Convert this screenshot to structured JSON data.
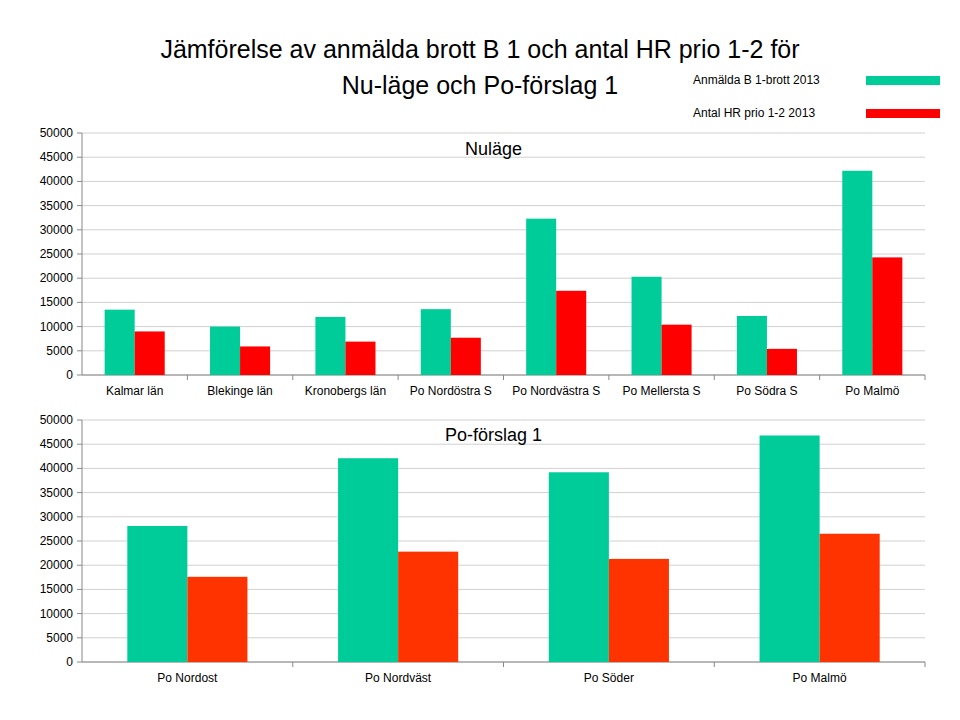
{
  "header": {
    "title": [
      "Jämförelse av anmälda brott B 1 och antal HR prio 1-2 för",
      "Nu-läge och Po-förslag 1"
    ]
  },
  "chart_data": [
    {
      "type": "bar",
      "title": "Nuläge",
      "categories": [
        "Kalmar län",
        "Blekinge län",
        "Kronobergs län",
        "Po Nordöstra S",
        "Po Nordvästra S",
        "Po Mellersta S",
        "Po Södra S",
        "Po Malmö"
      ],
      "series": [
        {
          "name": "Anmälda B 1-brott 2013",
          "color": "#00cc99",
          "values": [
            13500,
            10000,
            12000,
            13600,
            32300,
            20300,
            12200,
            42200
          ]
        },
        {
          "name": "Antal HR prio 1-2 2013",
          "color": "#ff0000",
          "values": [
            9000,
            5900,
            6900,
            7700,
            17400,
            10400,
            5400,
            24300
          ]
        }
      ],
      "ylim": [
        0,
        50000
      ],
      "yticks": [
        0,
        5000,
        10000,
        15000,
        20000,
        25000,
        30000,
        35000,
        40000,
        45000,
        50000
      ],
      "grid": true,
      "legend": "top-right"
    },
    {
      "type": "bar",
      "title": "Po-förslag 1",
      "categories": [
        "Po Nordost",
        "Po Nordväst",
        "Po Söder",
        "Po Malmö"
      ],
      "series": [
        {
          "name": "Anmälda B 1-brott 2013",
          "color": "#00cc99",
          "values": [
            28100,
            42100,
            39200,
            46800
          ]
        },
        {
          "name": "Antal HR prio 1-2 2013",
          "color": "#ff3300",
          "values": [
            17600,
            22800,
            21300,
            26500
          ]
        }
      ],
      "ylim": [
        0,
        50000
      ],
      "yticks": [
        0,
        5000,
        10000,
        15000,
        20000,
        25000,
        30000,
        35000,
        40000,
        45000,
        50000
      ],
      "grid": true
    }
  ]
}
